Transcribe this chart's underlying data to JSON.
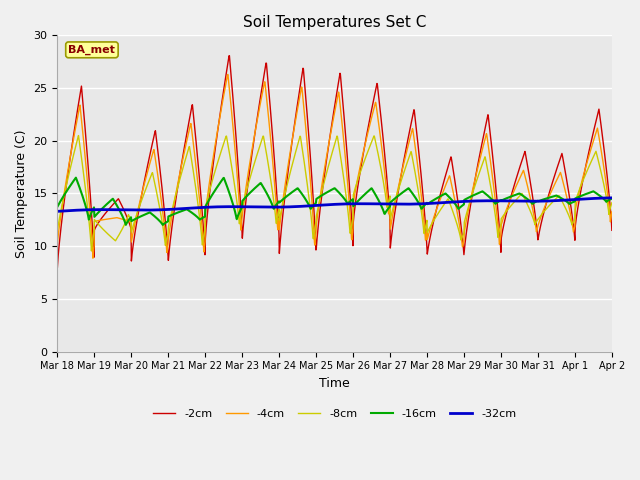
{
  "title": "Soil Temperatures Set C",
  "xlabel": "Time",
  "ylabel": "Soil Temperature (C)",
  "ylim": [
    0,
    30
  ],
  "yticks": [
    0,
    5,
    10,
    15,
    20,
    25,
    30
  ],
  "plot_bg_color": "#e8e8e8",
  "fig_bg_color": "#f0f0f0",
  "annotation_text": "BA_met",
  "annotation_bg": "#ffff99",
  "annotation_border": "#999900",
  "annotation_text_color": "#880000",
  "series_colors": [
    "#cc0000",
    "#ff9900",
    "#cccc00",
    "#00aa00",
    "#0000cc"
  ],
  "series_labels": [
    "-2cm",
    "-4cm",
    "-8cm",
    "-16cm",
    "-32cm"
  ],
  "series_linewidths": [
    1.0,
    1.0,
    1.0,
    1.5,
    2.0
  ],
  "x_tick_labels": [
    "Mar 18",
    "Mar 19",
    "Mar 20",
    "Mar 21",
    "Mar 22",
    "Mar 23",
    "Mar 24",
    "Mar 25",
    "Mar 26",
    "Mar 27",
    "Mar 28",
    "Mar 29",
    "Mar 30",
    "Mar 31",
    "Apr 1",
    "Apr 2"
  ]
}
